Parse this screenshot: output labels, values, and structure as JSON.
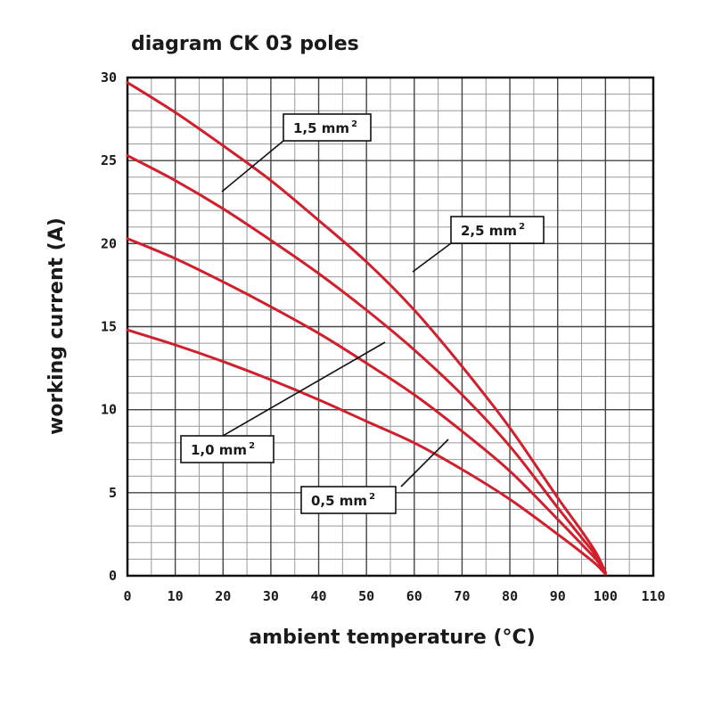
{
  "chart_data": {
    "type": "line",
    "title": "diagram CK 03 poles",
    "xlabel": "ambient temperature (°C)",
    "ylabel": "working current (A)",
    "xlim": [
      0,
      110
    ],
    "ylim": [
      0,
      30
    ],
    "x_ticks": [
      "0",
      "10",
      "20",
      "30",
      "40",
      "50",
      "60",
      "70",
      "80",
      "90",
      "100",
      "110"
    ],
    "y_ticks": [
      "0",
      "5",
      "10",
      "15",
      "20",
      "25",
      "30"
    ],
    "grid": true,
    "line_color": "#d0202e",
    "series": [
      {
        "name": "1,5 mm²",
        "label_text": "1,5 mm",
        "label_sup": "2",
        "x": [
          0,
          10,
          20,
          30,
          40,
          50,
          60,
          70,
          80,
          90,
          95,
          98,
          100
        ],
        "y": [
          29.7,
          27.9,
          25.9,
          23.8,
          21.4,
          18.9,
          16.0,
          12.6,
          8.9,
          4.7,
          2.7,
          1.4,
          0.2
        ]
      },
      {
        "name": "2,5 mm²",
        "label_text": "2,5 mm",
        "label_sup": "2",
        "x": [
          0,
          10,
          20,
          30,
          40,
          50,
          60,
          70,
          80,
          90,
          95,
          98,
          100
        ],
        "y": [
          25.3,
          23.8,
          22.1,
          20.2,
          18.2,
          16.0,
          13.6,
          10.9,
          7.8,
          4.1,
          2.3,
          1.2,
          0.2
        ]
      },
      {
        "name": "1,0 mm²",
        "label_text": "1,0 mm",
        "label_sup": "2",
        "x": [
          0,
          10,
          20,
          30,
          40,
          50,
          60,
          70,
          80,
          90,
          95,
          98,
          100
        ],
        "y": [
          20.3,
          19.1,
          17.7,
          16.2,
          14.6,
          12.8,
          10.9,
          8.7,
          6.3,
          3.4,
          1.9,
          1.0,
          0.2
        ]
      },
      {
        "name": "0,5 mm²",
        "label_text": "0,5 mm",
        "label_sup": "2",
        "x": [
          0,
          10,
          20,
          30,
          40,
          50,
          60,
          70,
          80,
          90,
          95,
          98,
          100
        ],
        "y": [
          14.8,
          13.9,
          12.9,
          11.8,
          10.6,
          9.3,
          8.0,
          6.4,
          4.6,
          2.5,
          1.4,
          0.7,
          0.1
        ]
      }
    ]
  }
}
